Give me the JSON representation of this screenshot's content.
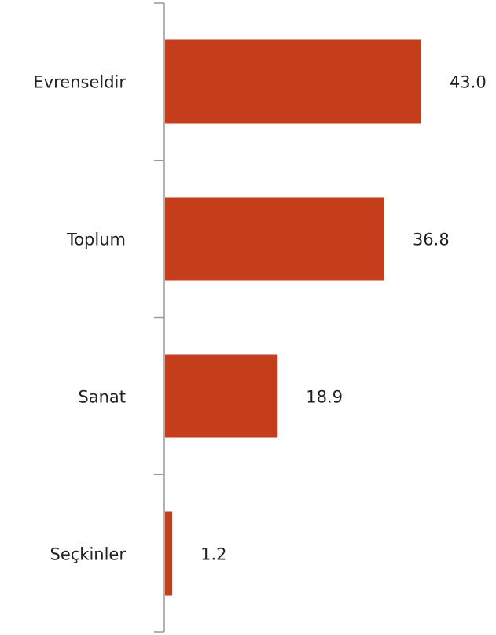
{
  "chart_data": {
    "type": "bar",
    "orientation": "horizontal",
    "categories": [
      "Evrenseldir",
      "Toplum",
      "Sanat",
      "Seçkinler"
    ],
    "values": [
      43.0,
      36.8,
      18.9,
      1.2
    ],
    "value_labels": [
      "43.0",
      "36.8",
      "18.9",
      "1.2"
    ],
    "color": "#c43e1b"
  }
}
